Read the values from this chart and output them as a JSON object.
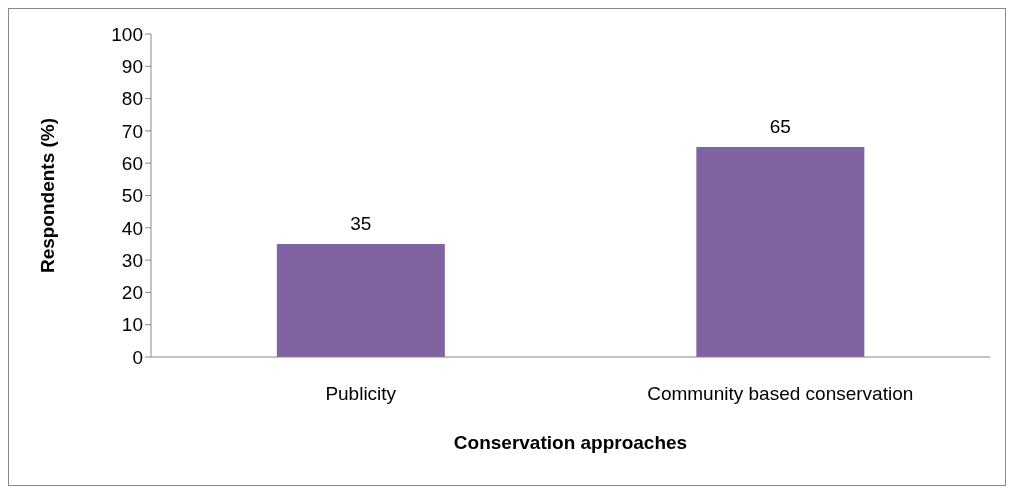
{
  "chart_data": {
    "type": "bar",
    "xlabel": "Conservation approaches",
    "ylabel": "Respondents (%)",
    "categories": [
      "Publicity",
      "Community based conservation"
    ],
    "values": [
      35,
      65
    ],
    "color": "#8064a2",
    "ylim": [
      0,
      100
    ],
    "yticks": [
      0,
      10,
      20,
      30,
      40,
      50,
      60,
      70,
      80,
      90,
      100
    ],
    "data_labels": true,
    "grid": false,
    "legend": false
  }
}
